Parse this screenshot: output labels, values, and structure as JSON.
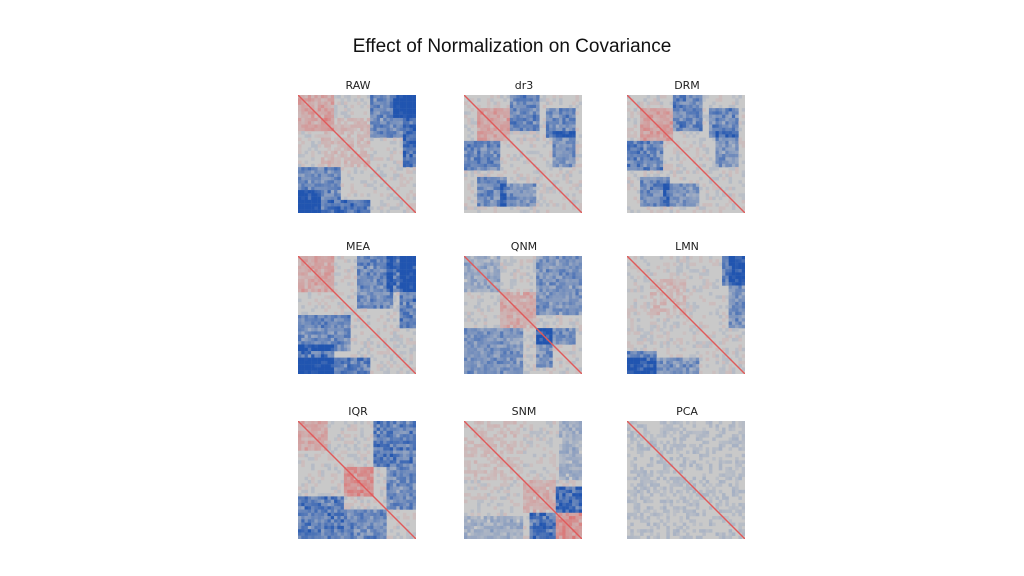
{
  "slide": {
    "title": "Effect of Normalization on Covariance"
  },
  "colors": {
    "negative": "#2155b0",
    "neutral": "#c9c9c9",
    "positive": "#e05a5a"
  },
  "chart_data": [
    {
      "type": "heatmap",
      "title": "RAW",
      "blocks": [
        {
          "r0": 0.0,
          "r1": 0.3,
          "c0": 0.0,
          "c1": 0.3,
          "v": 0.35
        },
        {
          "r0": 0.0,
          "r1": 0.2,
          "c0": 0.8,
          "c1": 1.0,
          "v": -0.8
        },
        {
          "r0": 0.8,
          "r1": 1.0,
          "c0": 0.0,
          "c1": 0.2,
          "v": -0.8
        },
        {
          "r0": 0.6,
          "r1": 0.9,
          "c0": 0.0,
          "c1": 0.35,
          "v": -0.6
        },
        {
          "r0": 0.0,
          "r1": 0.35,
          "c0": 0.6,
          "c1": 0.9,
          "v": -0.6
        },
        {
          "r0": 0.9,
          "r1": 1.0,
          "c0": 0.0,
          "c1": 0.6,
          "v": -0.85
        },
        {
          "r0": 0.0,
          "r1": 0.6,
          "c0": 0.9,
          "c1": 1.0,
          "v": -0.85
        },
        {
          "r0": 0.2,
          "r1": 0.6,
          "c0": 0.2,
          "c1": 0.6,
          "v": 0.15
        }
      ]
    },
    {
      "type": "heatmap",
      "title": "dr3",
      "blocks": [
        {
          "r0": 0.1,
          "r1": 0.4,
          "c0": 0.1,
          "c1": 0.4,
          "v": 0.4
        },
        {
          "r0": 0.0,
          "r1": 0.3,
          "c0": 0.4,
          "c1": 0.65,
          "v": -0.65
        },
        {
          "r0": 0.4,
          "r1": 0.65,
          "c0": 0.0,
          "c1": 0.3,
          "v": -0.65
        },
        {
          "r0": 0.1,
          "r1": 0.35,
          "c0": 0.7,
          "c1": 0.95,
          "v": -0.6
        },
        {
          "r0": 0.7,
          "r1": 0.95,
          "c0": 0.1,
          "c1": 0.35,
          "v": -0.6
        },
        {
          "r0": 0.75,
          "r1": 0.95,
          "c0": 0.3,
          "c1": 0.6,
          "v": -0.5
        },
        {
          "r0": 0.3,
          "r1": 0.6,
          "c0": 0.75,
          "c1": 0.95,
          "v": -0.5
        }
      ]
    },
    {
      "type": "heatmap",
      "title": "DRM",
      "blocks": [
        {
          "r0": 0.1,
          "r1": 0.4,
          "c0": 0.1,
          "c1": 0.4,
          "v": 0.4
        },
        {
          "r0": 0.0,
          "r1": 0.3,
          "c0": 0.4,
          "c1": 0.65,
          "v": -0.65
        },
        {
          "r0": 0.4,
          "r1": 0.65,
          "c0": 0.0,
          "c1": 0.3,
          "v": -0.65
        },
        {
          "r0": 0.1,
          "r1": 0.35,
          "c0": 0.7,
          "c1": 0.95,
          "v": -0.6
        },
        {
          "r0": 0.7,
          "r1": 0.95,
          "c0": 0.1,
          "c1": 0.35,
          "v": -0.6
        },
        {
          "r0": 0.75,
          "r1": 0.95,
          "c0": 0.3,
          "c1": 0.6,
          "v": -0.5
        },
        {
          "r0": 0.3,
          "r1": 0.6,
          "c0": 0.75,
          "c1": 0.95,
          "v": -0.5
        }
      ]
    },
    {
      "type": "heatmap",
      "title": "MEA",
      "blocks": [
        {
          "r0": 0.0,
          "r1": 0.3,
          "c0": 0.0,
          "c1": 0.3,
          "v": 0.35
        },
        {
          "r0": 0.0,
          "r1": 0.3,
          "c0": 0.75,
          "c1": 1.0,
          "v": -0.8
        },
        {
          "r0": 0.75,
          "r1": 1.0,
          "c0": 0.0,
          "c1": 0.3,
          "v": -0.8
        },
        {
          "r0": 0.5,
          "r1": 0.8,
          "c0": 0.0,
          "c1": 0.45,
          "v": -0.6
        },
        {
          "r0": 0.0,
          "r1": 0.45,
          "c0": 0.5,
          "c1": 0.8,
          "v": -0.6
        },
        {
          "r0": 0.85,
          "r1": 1.0,
          "c0": 0.0,
          "c1": 0.6,
          "v": -0.7
        },
        {
          "r0": 0.0,
          "r1": 0.6,
          "c0": 0.85,
          "c1": 1.0,
          "v": -0.7
        }
      ]
    },
    {
      "type": "heatmap",
      "title": "QNM",
      "blocks": [
        {
          "r0": 0.3,
          "r1": 0.6,
          "c0": 0.3,
          "c1": 0.6,
          "v": 0.3
        },
        {
          "r0": 0.0,
          "r1": 0.3,
          "c0": 0.0,
          "c1": 0.3,
          "v": -0.3
        },
        {
          "r0": 0.0,
          "r1": 0.5,
          "c0": 0.6,
          "c1": 1.0,
          "v": -0.5
        },
        {
          "r0": 0.6,
          "r1": 1.0,
          "c0": 0.0,
          "c1": 0.5,
          "v": -0.5
        },
        {
          "r0": 0.6,
          "r1": 0.95,
          "c0": 0.6,
          "c1": 0.75,
          "v": -0.55
        },
        {
          "r0": 0.6,
          "r1": 0.75,
          "c0": 0.6,
          "c1": 0.95,
          "v": -0.55
        }
      ]
    },
    {
      "type": "heatmap",
      "title": "LMN",
      "blocks": [
        {
          "r0": 0.0,
          "r1": 0.25,
          "c0": 0.8,
          "c1": 1.0,
          "v": -0.7
        },
        {
          "r0": 0.8,
          "r1": 1.0,
          "c0": 0.0,
          "c1": 0.25,
          "v": -0.7
        },
        {
          "r0": 0.85,
          "r1": 1.0,
          "c0": 0.0,
          "c1": 0.6,
          "v": -0.5
        },
        {
          "r0": 0.0,
          "r1": 0.6,
          "c0": 0.85,
          "c1": 1.0,
          "v": -0.5
        },
        {
          "r0": 0.2,
          "r1": 0.5,
          "c0": 0.2,
          "c1": 0.5,
          "v": 0.15
        }
      ]
    },
    {
      "type": "heatmap",
      "title": "IQR",
      "blocks": [
        {
          "r0": 0.4,
          "r1": 0.65,
          "c0": 0.4,
          "c1": 0.65,
          "v": 0.55
        },
        {
          "r0": 0.0,
          "r1": 0.25,
          "c0": 0.0,
          "c1": 0.25,
          "v": 0.3
        },
        {
          "r0": 0.65,
          "r1": 1.0,
          "c0": 0.0,
          "c1": 0.4,
          "v": -0.7
        },
        {
          "r0": 0.0,
          "r1": 0.4,
          "c0": 0.65,
          "c1": 1.0,
          "v": -0.7
        },
        {
          "r0": 0.4,
          "r1": 0.75,
          "c0": 0.75,
          "c1": 1.0,
          "v": -0.6
        },
        {
          "r0": 0.75,
          "r1": 1.0,
          "c0": 0.4,
          "c1": 0.75,
          "v": -0.6
        }
      ]
    },
    {
      "type": "heatmap",
      "title": "SNM",
      "blocks": [
        {
          "r0": 0.78,
          "r1": 1.0,
          "c0": 0.78,
          "c1": 1.0,
          "v": 0.55
        },
        {
          "r0": 0.55,
          "r1": 0.78,
          "c0": 0.78,
          "c1": 1.0,
          "v": -0.85
        },
        {
          "r0": 0.78,
          "r1": 1.0,
          "c0": 0.55,
          "c1": 0.78,
          "v": -0.85
        },
        {
          "r0": 0.5,
          "r1": 0.78,
          "c0": 0.5,
          "c1": 0.78,
          "v": 0.25
        },
        {
          "r0": 0.0,
          "r1": 0.5,
          "c0": 0.0,
          "c1": 0.5,
          "v": 0.1
        },
        {
          "r0": 0.0,
          "r1": 0.5,
          "c0": 0.8,
          "c1": 1.0,
          "v": -0.25
        },
        {
          "r0": 0.8,
          "r1": 1.0,
          "c0": 0.0,
          "c1": 0.5,
          "v": -0.25
        }
      ]
    },
    {
      "type": "heatmap",
      "title": "PCA",
      "blocks": [
        {
          "r0": 0.0,
          "r1": 1.0,
          "c0": 0.0,
          "c1": 1.0,
          "v": -0.08
        }
      ]
    }
  ]
}
